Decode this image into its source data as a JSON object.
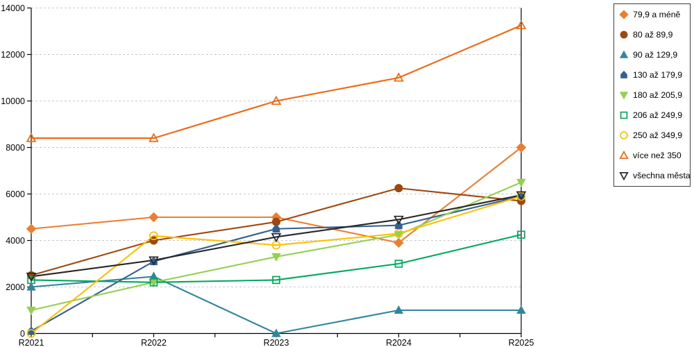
{
  "chart_data": {
    "type": "line",
    "title": "",
    "xlabel": "",
    "ylabel": "",
    "categories": [
      "R2021",
      "R2022",
      "R2023",
      "R2024",
      "R2025"
    ],
    "y_ticks": [
      "0",
      "2000",
      "4000",
      "6000",
      "8000",
      "10000",
      "12000",
      "14000"
    ],
    "ylim": [
      0,
      14000
    ],
    "ytick_step": 2000,
    "grid": "horizontal-dashed",
    "gridline_color": "#c8c8c8",
    "axis_color": "#000000",
    "legend_position": "right",
    "series": [
      {
        "name": "79,9 a méně",
        "color": "#ED7D31",
        "marker": "diamond",
        "marker_fill": "solid",
        "values": [
          4500,
          5000,
          5000,
          3900,
          8000
        ]
      },
      {
        "name": "80 až 89,9",
        "color": "#9E480E",
        "marker": "circle",
        "marker_fill": "solid",
        "values": [
          2500,
          4000,
          4800,
          6250,
          5700
        ]
      },
      {
        "name": "90 až 129,9",
        "color": "#31859C",
        "marker": "triangle-up",
        "marker_fill": "solid",
        "values": [
          2000,
          2450,
          0,
          1000,
          1000
        ]
      },
      {
        "name": "130 až 179,9",
        "color": "#336090",
        "marker": "pentagon",
        "marker_fill": "solid",
        "values": [
          100,
          3100,
          4500,
          4650,
          5900
        ]
      },
      {
        "name": "180 až 205,9",
        "color": "#92D050",
        "marker": "triangle-down",
        "marker_fill": "solid",
        "values": [
          1000,
          2200,
          3300,
          4250,
          6500
        ]
      },
      {
        "name": "206 až 249,9",
        "color": "#00A85D",
        "marker": "square",
        "marker_fill": "open",
        "values": [
          2300,
          2200,
          2300,
          3000,
          4250
        ]
      },
      {
        "name": "250 až 349,9",
        "color": "#FFC000",
        "marker": "circle",
        "marker_fill": "open",
        "values": [
          0,
          4200,
          3800,
          4300,
          5900
        ]
      },
      {
        "name": "více než 350",
        "color": "#F0670F",
        "marker": "triangle-up",
        "marker_fill": "open",
        "values": [
          8400,
          8400,
          10000,
          11000,
          13250
        ]
      },
      {
        "name": "všechna města",
        "color": "#262626",
        "marker": "triangle-down",
        "marker_fill": "open",
        "values": [
          2450,
          3150,
          4150,
          4900,
          5950
        ]
      }
    ]
  }
}
